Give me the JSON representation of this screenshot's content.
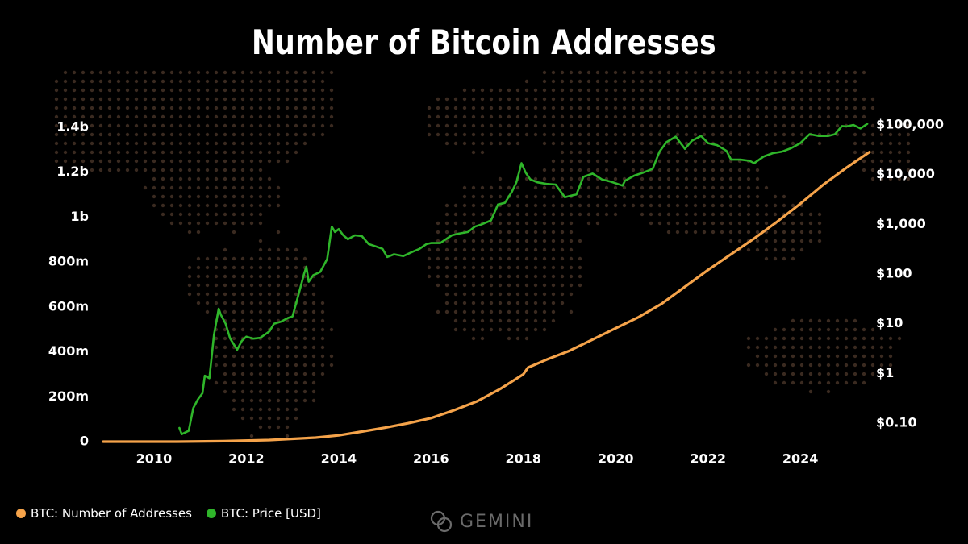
{
  "colors": {
    "background": "#000000",
    "map_dots": "#3a2a20",
    "addresses_line": "#f5a34a",
    "price_line": "#2fb52a",
    "text": "#ffffff",
    "brand": "#6a6a6a"
  },
  "brand": {
    "name": "GEMINI",
    "icon": "gemini-logo-icon"
  },
  "chart_data": {
    "type": "line",
    "title": "Number of Bitcoin Addresses",
    "grid": false,
    "legend_position": "bottom-left",
    "x_range": [
      2008.9,
      2025.5
    ],
    "x_ticks": [
      2010,
      2012,
      2014,
      2016,
      2018,
      2020,
      2022,
      2024
    ],
    "x_tick_labels": [
      "2010",
      "2012",
      "2014",
      "2016",
      "2018",
      "2020",
      "2022",
      "2024"
    ],
    "y_left": {
      "range": [
        0,
        1400000000
      ],
      "ticks": [
        0,
        200000000,
        400000000,
        600000000,
        800000000,
        1000000000,
        1200000000,
        1400000000
      ],
      "tick_labels": [
        "0",
        "200m",
        "400m",
        "600m",
        "800m",
        "1b",
        "1.2b",
        "1.4b"
      ]
    },
    "y_right": {
      "scale": "log",
      "range": [
        0.05,
        100000
      ],
      "ticks": [
        0.1,
        1,
        10,
        100,
        1000,
        10000,
        100000
      ],
      "tick_labels": [
        "$0.10",
        "$1",
        "$10",
        "$100",
        "$1,000",
        "$10,000",
        "$100,000"
      ]
    },
    "series": [
      {
        "name": "BTC: Number of Addresses",
        "axis": "left",
        "x": [
          2008.9,
          2010.5,
          2011.5,
          2012.5,
          2013.5,
          2014.0,
          2014.5,
          2015.0,
          2015.5,
          2016.0,
          2016.5,
          2017.0,
          2017.5,
          2018.0,
          2018.1,
          2018.5,
          2019.0,
          2019.5,
          2020.0,
          2020.5,
          2021.0,
          2021.5,
          2022.0,
          2022.5,
          2023.0,
          2023.5,
          2024.0,
          2024.5,
          2025.0,
          2025.5
        ],
        "values": [
          0,
          0,
          2000000,
          7000000,
          18000000,
          28000000,
          45000000,
          62000000,
          82000000,
          105000000,
          140000000,
          180000000,
          235000000,
          300000000,
          330000000,
          365000000,
          405000000,
          455000000,
          505000000,
          555000000,
          615000000,
          690000000,
          765000000,
          835000000,
          905000000,
          980000000,
          1060000000,
          1145000000,
          1220000000,
          1290000000
        ]
      },
      {
        "name": "BTC: Price [USD]",
        "axis": "right",
        "x": [
          2010.55,
          2010.6,
          2010.75,
          2010.85,
          2010.95,
          2011.05,
          2011.1,
          2011.2,
          2011.3,
          2011.4,
          2011.45,
          2011.55,
          2011.65,
          2011.8,
          2011.9,
          2012.0,
          2012.15,
          2012.3,
          2012.5,
          2012.6,
          2012.75,
          2012.9,
          2013.0,
          2013.15,
          2013.25,
          2013.3,
          2013.35,
          2013.45,
          2013.6,
          2013.75,
          2013.85,
          2013.92,
          2014.0,
          2014.1,
          2014.2,
          2014.35,
          2014.5,
          2014.65,
          2014.8,
          2014.95,
          2015.05,
          2015.2,
          2015.4,
          2015.6,
          2015.75,
          2015.9,
          2016.0,
          2016.2,
          2016.45,
          2016.6,
          2016.8,
          2016.95,
          2017.1,
          2017.3,
          2017.45,
          2017.6,
          2017.75,
          2017.85,
          2017.96,
          2018.05,
          2018.15,
          2018.3,
          2018.5,
          2018.7,
          2018.9,
          2019.0,
          2019.15,
          2019.3,
          2019.5,
          2019.7,
          2019.9,
          2020.15,
          2020.2,
          2020.4,
          2020.6,
          2020.8,
          2020.95,
          2021.1,
          2021.3,
          2021.5,
          2021.65,
          2021.85,
          2022.0,
          2022.2,
          2022.4,
          2022.5,
          2022.7,
          2022.9,
          2023.0,
          2023.2,
          2023.4,
          2023.6,
          2023.8,
          2024.0,
          2024.2,
          2024.4,
          2024.6,
          2024.75,
          2024.9,
          2025.0,
          2025.15,
          2025.3,
          2025.45
        ],
        "values": [
          0.08,
          0.06,
          0.07,
          0.2,
          0.3,
          0.4,
          0.9,
          0.8,
          6,
          20,
          15,
          10,
          5,
          3,
          4.5,
          5.5,
          5,
          5.2,
          7,
          10,
          11,
          13,
          14,
          45,
          100,
          140,
          70,
          95,
          110,
          200,
          900,
          700,
          800,
          600,
          500,
          600,
          580,
          400,
          360,
          320,
          220,
          250,
          230,
          280,
          320,
          400,
          420,
          420,
          600,
          650,
          700,
          900,
          1000,
          1200,
          2500,
          2700,
          4500,
          7000,
          17000,
          11000,
          8000,
          7000,
          6500,
          6300,
          3500,
          3700,
          4000,
          9000,
          10500,
          8000,
          7200,
          6000,
          7500,
          9500,
          11000,
          13000,
          29000,
          45000,
          58000,
          33000,
          48000,
          60000,
          43000,
          39000,
          30000,
          20000,
          20000,
          19000,
          17000,
          23000,
          27000,
          29000,
          34000,
          43000,
          65000,
          60000,
          60000,
          65000,
          95000,
          93000,
          100000,
          85000,
          105000
        ]
      }
    ]
  }
}
